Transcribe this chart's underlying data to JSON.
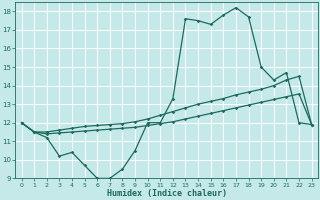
{
  "xlabel": "Humidex (Indice chaleur)",
  "xlim": [
    -0.5,
    23.5
  ],
  "ylim": [
    9,
    18.5
  ],
  "yticks": [
    9,
    10,
    11,
    12,
    13,
    14,
    15,
    16,
    17,
    18
  ],
  "xticks": [
    0,
    1,
    2,
    3,
    4,
    5,
    6,
    7,
    8,
    9,
    10,
    11,
    12,
    13,
    14,
    15,
    16,
    17,
    18,
    19,
    20,
    21,
    22,
    23
  ],
  "bg_color": "#c5e8e8",
  "line_color": "#1a6b5a",
  "grid_color": "#ffffff",
  "curve1_y": [
    12,
    11.5,
    11.2,
    10.2,
    10.4,
    9.7,
    9.0,
    9.0,
    9.5,
    10.5,
    12.0,
    12.0,
    13.3,
    17.6,
    17.5,
    17.3,
    17.8,
    18.2,
    17.7,
    15.0,
    14.3,
    14.7,
    12.0,
    11.9
  ],
  "curve2_y": [
    12,
    11.5,
    11.5,
    11.6,
    11.7,
    11.8,
    11.85,
    11.9,
    11.95,
    12.05,
    12.2,
    12.4,
    12.6,
    12.8,
    13.0,
    13.15,
    13.3,
    13.5,
    13.65,
    13.8,
    14.0,
    14.3,
    14.5,
    11.9
  ],
  "curve3_y": [
    12,
    11.5,
    11.4,
    11.45,
    11.5,
    11.55,
    11.6,
    11.65,
    11.7,
    11.75,
    11.85,
    11.95,
    12.05,
    12.2,
    12.35,
    12.5,
    12.65,
    12.8,
    12.95,
    13.1,
    13.25,
    13.4,
    13.55,
    11.9
  ]
}
